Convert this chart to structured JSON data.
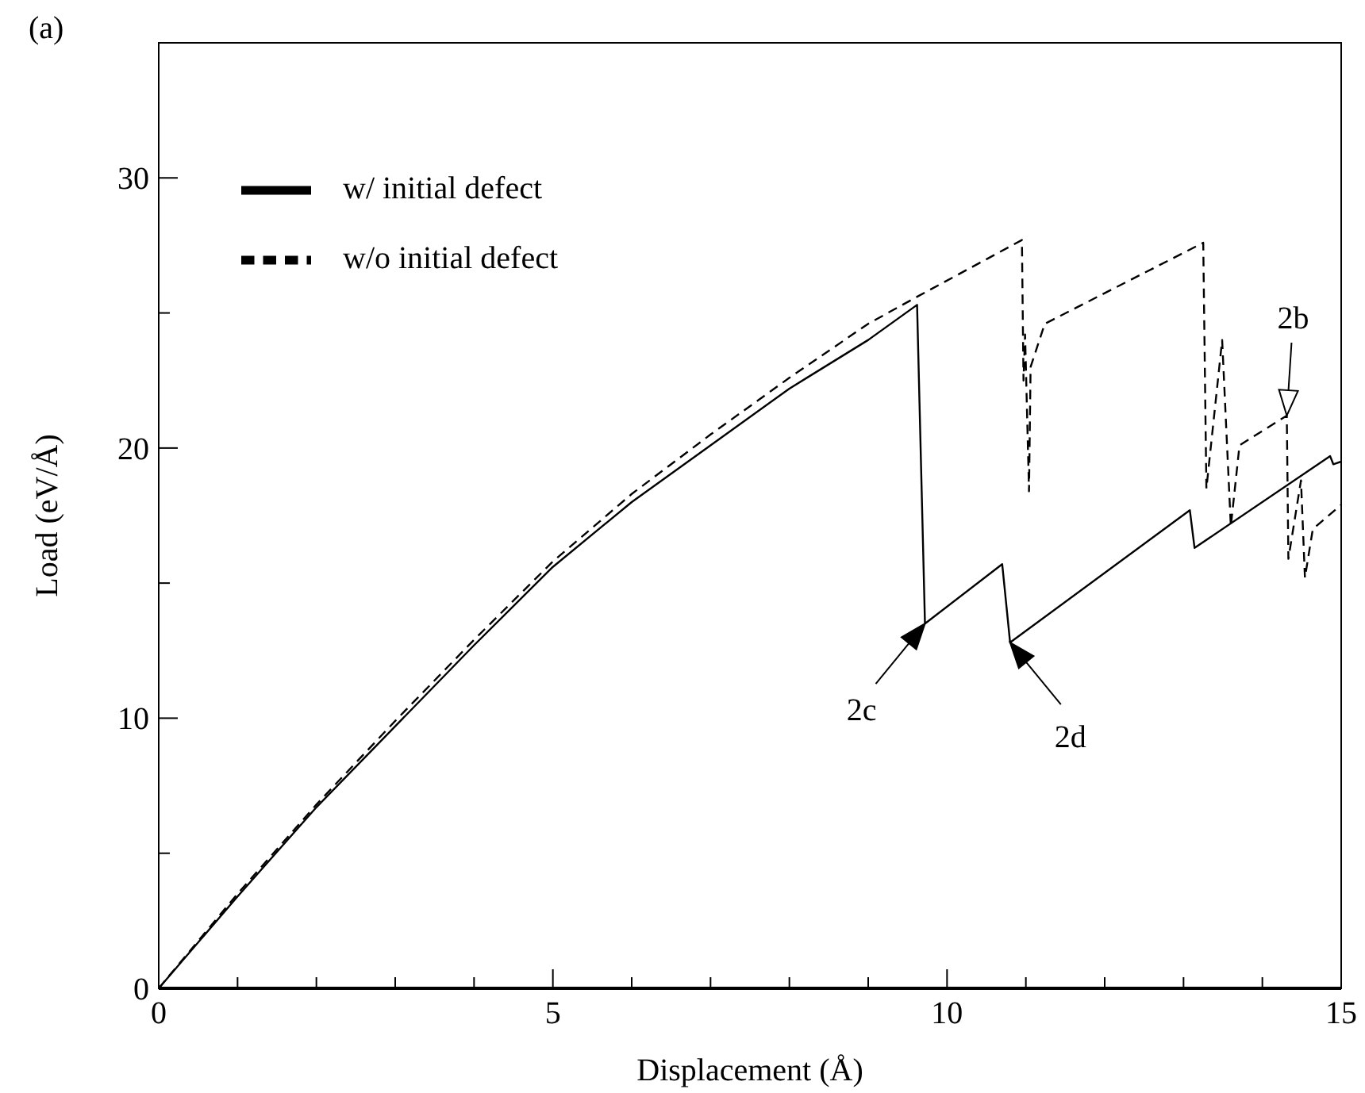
{
  "chart_data": {
    "type": "line",
    "title": "(a)",
    "xlabel": "Displacement (Å)",
    "ylabel": "Load (eV/Å)",
    "xlim": [
      0,
      15
    ],
    "ylim": [
      0,
      35
    ],
    "xticks": [
      0,
      {
        "value": 1,
        "label": null
      },
      {
        "value": 2,
        "label": null
      },
      {
        "value": 3,
        "label": null
      },
      {
        "value": 4,
        "label": null
      },
      5,
      {
        "value": 6,
        "label": null
      },
      {
        "value": 7,
        "label": null
      },
      {
        "value": 8,
        "label": null
      },
      {
        "value": 9,
        "label": null
      },
      10,
      {
        "value": 11,
        "label": null
      },
      {
        "value": 12,
        "label": null
      },
      {
        "value": 13,
        "label": null
      },
      {
        "value": 14,
        "label": null
      },
      15
    ],
    "yticks": [
      0,
      {
        "value": 5,
        "label": null
      },
      10,
      {
        "value": 15,
        "label": null
      },
      20,
      {
        "value": 25,
        "label": null
      },
      30
    ],
    "grid": false,
    "legend": "top left",
    "marker": "none",
    "series": [
      {
        "name": "w/ initial defect",
        "color": "#000000",
        "line_style": "solid",
        "x": [
          0,
          1,
          2,
          3,
          4,
          5,
          6,
          7,
          8,
          9,
          9.62,
          9.72,
          10.7,
          10.8,
          13.08,
          13.14,
          14.86,
          14.9,
          15
        ],
        "values": [
          0,
          3.4,
          6.7,
          9.7,
          12.7,
          15.6,
          18.0,
          20.1,
          22.2,
          24.0,
          25.3,
          13.5,
          15.7,
          12.8,
          17.7,
          16.3,
          19.7,
          19.4,
          19.5
        ]
      },
      {
        "name": "w/o initial defect",
        "color": "#000000",
        "line_style": "dashed",
        "x": [
          0,
          1,
          2,
          3,
          4,
          5,
          6,
          7,
          8,
          9,
          9.62,
          10.95,
          10.97,
          10.99,
          11.04,
          11.06,
          11.24,
          13.25,
          13.29,
          13.49,
          13.6,
          13.71,
          14.31,
          14.33,
          14.49,
          14.54,
          14.64,
          15
        ],
        "values": [
          0,
          3.5,
          6.8,
          9.9,
          12.9,
          15.8,
          18.3,
          20.5,
          22.6,
          24.6,
          25.6,
          27.7,
          22.5,
          24.2,
          18.4,
          23.0,
          24.6,
          27.6,
          18.5,
          24.0,
          17.1,
          20.1,
          21.2,
          15.9,
          18.8,
          15.2,
          17.0,
          17.9
        ]
      }
    ],
    "annotations": [
      {
        "text": "2c",
        "x": 9.72,
        "y": 13.5
      },
      {
        "text": "2d",
        "x": 10.8,
        "y": 12.8
      },
      {
        "text": "2b",
        "x": 14.31,
        "y": 21.2
      }
    ]
  }
}
